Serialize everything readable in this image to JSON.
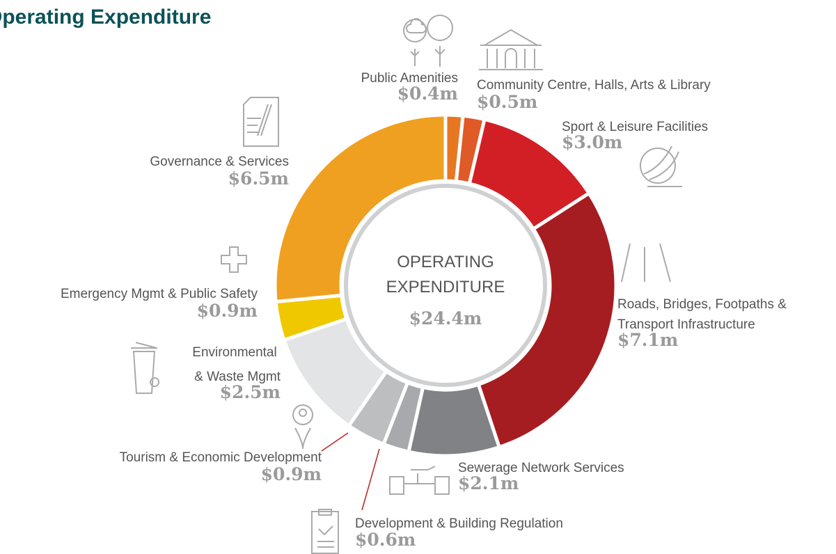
{
  "chart_data": {
    "type": "donut",
    "title": "Operating Expenditure",
    "center_text": [
      "OPERATING",
      "EXPENDITURE"
    ],
    "center_value": "$24.4m",
    "categories": [
      "Public Amenities",
      "Community Centre, Halls, Arts & Library",
      "Sport & Leisure Facilities",
      "Roads, Bridges, Footpaths & Transport  Infrastructure",
      "Sewerage Network Services",
      "Development & Building Regulation",
      "Tourism & Economic Development",
      "Environmental & Waste Mgmt",
      "Emergency Mgmt & Public Safety",
      "Governance & Services"
    ],
    "values": [
      0.4,
      0.5,
      3.0,
      7.1,
      2.1,
      0.6,
      0.9,
      2.5,
      0.9,
      6.5
    ],
    "value_labels": [
      "$0.4m",
      "$0.5m",
      "$3.0m",
      "$7.1m",
      "$2.1m",
      "$0.6m",
      "$0.9m",
      "$2.5m",
      "$0.9m",
      "$6.5m"
    ],
    "colors": [
      "#e87722",
      "#e05a28",
      "#d21f26",
      "#a51d21",
      "#808285",
      "#a7a9ac",
      "#bcbec0",
      "#e3e4e5",
      "#f0c800",
      "#f0a020"
    ]
  }
}
